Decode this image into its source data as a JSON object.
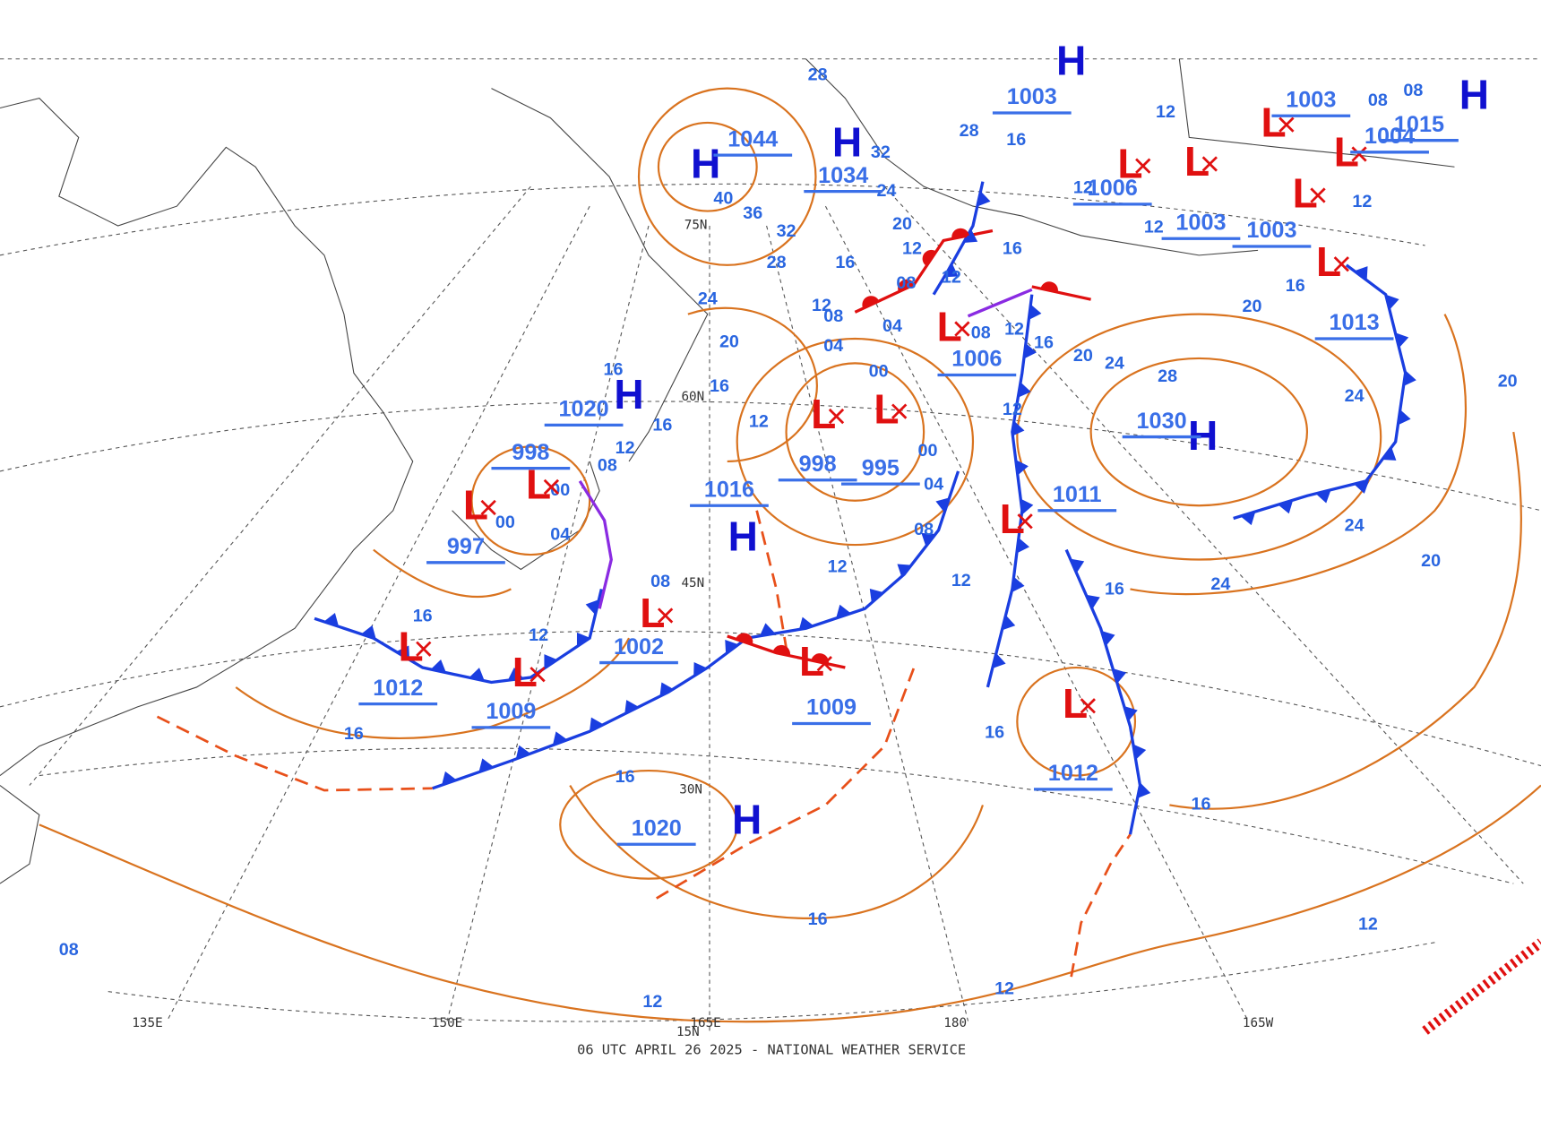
{
  "footer": "06 UTC APRIL 26 2025 - NATIONAL WEATHER SERVICE",
  "grid_labels": [
    "75N",
    "60N",
    "45N",
    "30N",
    "15N",
    "135E",
    "150E",
    "165E",
    "180",
    "165W"
  ],
  "centers": [
    {
      "symbol": "H",
      "pressure": 1044
    },
    {
      "symbol": "H",
      "pressure": 1034
    },
    {
      "symbol": "H",
      "pressure": 1020
    },
    {
      "symbol": "L",
      "pressure": 998
    },
    {
      "symbol": "L",
      "pressure": 997
    },
    {
      "symbol": "L",
      "pressure": 1012
    },
    {
      "symbol": "L",
      "pressure": 1009
    },
    {
      "symbol": "L",
      "pressure": 1002
    },
    {
      "symbol": "H",
      "pressure": 1016
    },
    {
      "symbol": "L",
      "pressure": 998
    },
    {
      "symbol": "L",
      "pressure": 995
    },
    {
      "symbol": "L",
      "pressure": 1009
    },
    {
      "symbol": "H",
      "pressure": 1020
    },
    {
      "symbol": "L",
      "pressure": 1006
    },
    {
      "symbol": "L",
      "pressure": 1011
    },
    {
      "symbol": "L",
      "pressure": 1012
    },
    {
      "symbol": "H",
      "pressure": 1030
    },
    {
      "symbol": "L",
      "pressure": 1013
    },
    {
      "symbol": "L",
      "pressure": 1003
    },
    {
      "symbol": "L",
      "pressure": 1003
    },
    {
      "symbol": "L",
      "pressure": 1006
    },
    {
      "symbol": "H",
      "pressure": 1003
    },
    {
      "symbol": "L",
      "pressure": 1003
    },
    {
      "symbol": "L",
      "pressure": 1004
    },
    {
      "symbol": "H",
      "pressure": 1015
    }
  ],
  "isobar_labels": [
    "40",
    "36",
    "32",
    "28",
    "24",
    "20",
    "16",
    "12",
    "16",
    "16",
    "12",
    "08",
    "00",
    "00",
    "04",
    "08",
    "12",
    "16",
    "16",
    "16",
    "16",
    "12",
    "12",
    "12",
    "08",
    "12",
    "08",
    "04",
    "00",
    "12",
    "16",
    "16",
    "16",
    "24",
    "20",
    "24",
    "24",
    "20",
    "20",
    "16",
    "28",
    "24",
    "20",
    "16",
    "12",
    "12",
    "08",
    "04",
    "08",
    "12",
    "16",
    "20",
    "12",
    "16",
    "16",
    "28",
    "24",
    "32",
    "28",
    "12",
    "08",
    "04",
    "00",
    "12",
    "12",
    "12",
    "12",
    "08",
    "08"
  ]
}
